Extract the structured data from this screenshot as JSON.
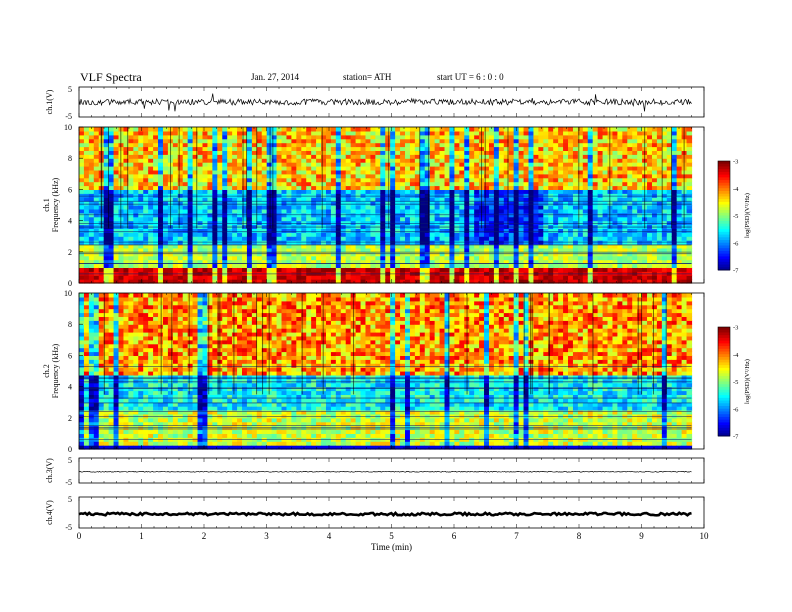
{
  "header": {
    "title": "VLF  Spectra",
    "date": "Jan. 27, 2014",
    "station": "station= ATH",
    "start": "start  UT  =   6  : 0  : 0"
  },
  "chart_data": [
    {
      "type": "line",
      "panel": "waveform",
      "ylabel": "ch.1(V)",
      "yticks": [
        "5",
        "-5"
      ],
      "ylim": [
        -5,
        5
      ],
      "xlim": [
        0,
        10
      ],
      "description_values": {
        "baseline": 0,
        "noise_amplitude": 1
      }
    },
    {
      "type": "heatmap",
      "panel": "spectrogram",
      "ylabel": "Frequency  (kHz)",
      "channel_label": "ch.1",
      "yticks": [
        "0",
        "2",
        "4",
        "6",
        "8",
        "10"
      ],
      "ylim": [
        0,
        10
      ],
      "xlim": [
        0,
        10
      ],
      "colorbar": {
        "label": "log(PSD)(V²/Hz)",
        "ticks": [
          "-3",
          "-4",
          "-5",
          "-6",
          "-7"
        ],
        "range": [
          -7,
          -3
        ]
      }
    },
    {
      "type": "heatmap",
      "panel": "spectrogram",
      "ylabel": "Frequency  (kHz)",
      "channel_label": "ch.2",
      "yticks": [
        "0",
        "2",
        "4",
        "6",
        "8",
        "10"
      ],
      "ylim": [
        0,
        10
      ],
      "xlim": [
        0,
        10
      ],
      "colorbar": {
        "label": "log(PSD)(V²/Hz)",
        "ticks": [
          "-3",
          "-4",
          "-5",
          "-6",
          "-7"
        ],
        "range": [
          -7,
          -3
        ]
      }
    },
    {
      "type": "line",
      "panel": "waveform",
      "ylabel": "ch.3(V)",
      "yticks": [
        "5",
        "-5"
      ],
      "ylim": [
        -5,
        5
      ],
      "xlim": [
        0,
        10
      ]
    },
    {
      "type": "line",
      "panel": "waveform",
      "ylabel": "ch.4(V)",
      "yticks": [
        "5",
        "-5"
      ],
      "ylim": [
        -5,
        5
      ],
      "xlim": [
        0,
        10
      ]
    }
  ],
  "xaxis": {
    "label": "Time  (min)",
    "ticks": [
      "0",
      "1",
      "2",
      "3",
      "4",
      "5",
      "6",
      "7",
      "8",
      "9",
      "10"
    ],
    "data_end": 9.8
  }
}
